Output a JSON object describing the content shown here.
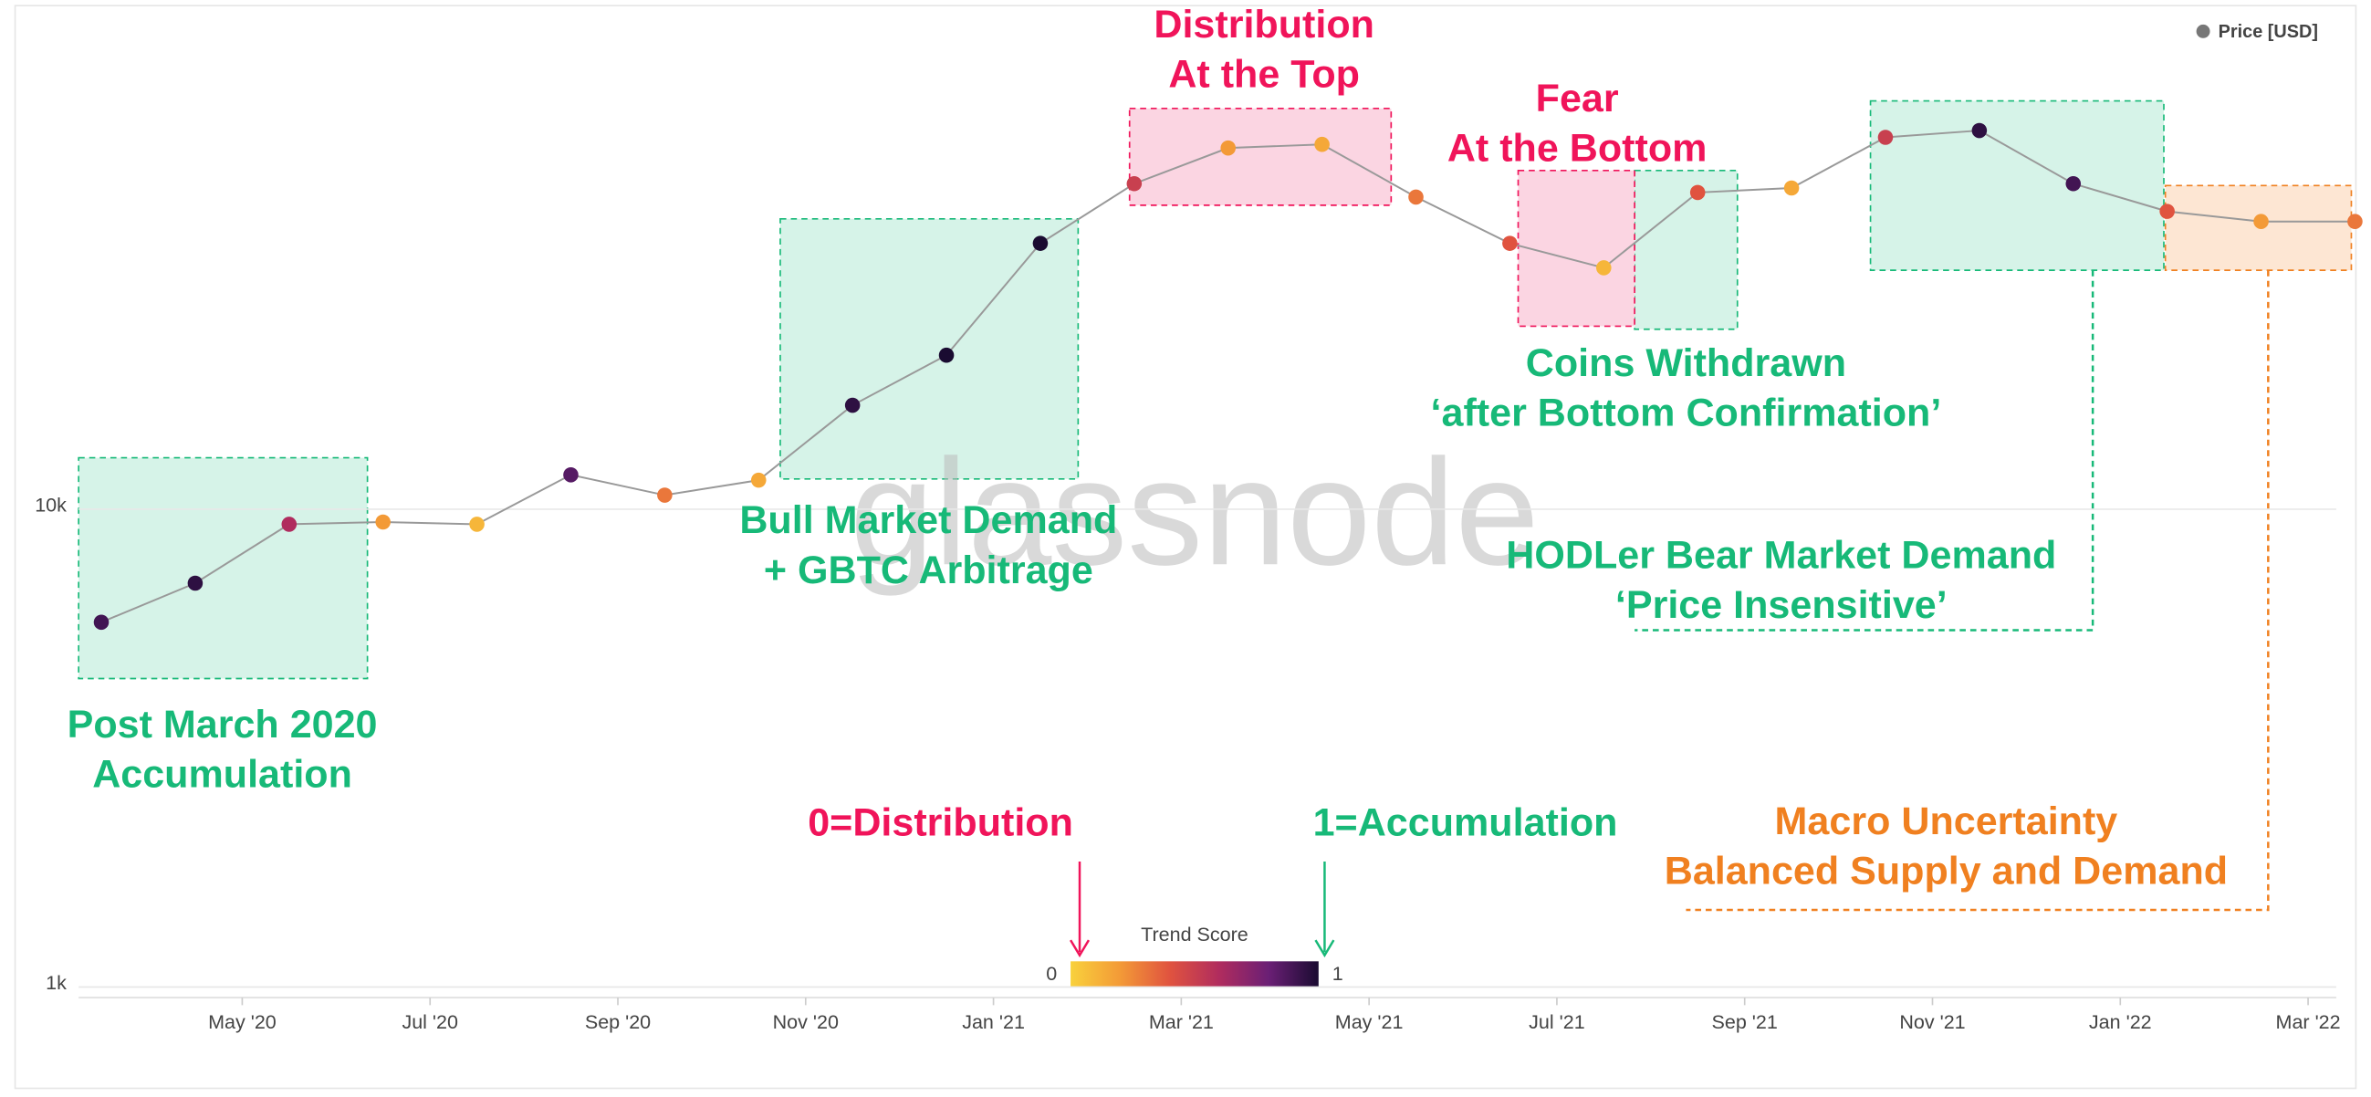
{
  "chart_data": {
    "type": "scatter",
    "log_y": true,
    "grid": true,
    "legend": "top-right",
    "watermark": "glassnode",
    "x": [
      "2020-03",
      "2020-04",
      "2020-05",
      "2020-06",
      "2020-07",
      "2020-08",
      "2020-09",
      "2020-10",
      "2020-11",
      "2020-12",
      "2021-01",
      "2021-02",
      "2021-03",
      "2021-04",
      "2021-05",
      "2021-06",
      "2021-07",
      "2021-08",
      "2021-09",
      "2021-10",
      "2021-11",
      "2021-12",
      "2022-01",
      "2022-02",
      "2022-03"
    ],
    "xticks": [
      {
        "value": "2020-05",
        "label": "May '20"
      },
      {
        "value": "2020-07",
        "label": "Jul '20"
      },
      {
        "value": "2020-09",
        "label": "Sep '20"
      },
      {
        "value": "2020-11",
        "label": "Nov '20"
      },
      {
        "value": "2021-01",
        "label": "Jan '21"
      },
      {
        "value": "2021-03",
        "label": "Mar '21"
      },
      {
        "value": "2021-05",
        "label": "May '21"
      },
      {
        "value": "2021-07",
        "label": "Jul '21"
      },
      {
        "value": "2021-09",
        "label": "Sep '21"
      },
      {
        "value": "2021-11",
        "label": "Nov '21"
      },
      {
        "value": "2022-01",
        "label": "Jan '22"
      },
      {
        "value": "2022-03",
        "label": "Mar '22"
      }
    ],
    "ylim": [
      1000,
      100000
    ],
    "yticks": [
      {
        "value": 1000,
        "label": "1k"
      },
      {
        "value": 10000,
        "label": "10k"
      }
    ],
    "series": [
      {
        "name": "Price [USD]",
        "color": "#777777",
        "values": [
          5800,
          7000,
          9300,
          9400,
          9300,
          11800,
          10700,
          11500,
          16500,
          21000,
          36000,
          48000,
          57000,
          58000,
          45000,
          36000,
          32000,
          46000,
          47000,
          60000,
          62000,
          48000,
          42000,
          40000,
          40000
        ],
        "trend_score": [
          0.9,
          0.95,
          0.6,
          0.2,
          0.1,
          0.85,
          0.3,
          0.15,
          0.95,
          1,
          1,
          0.5,
          0.2,
          0.15,
          0.3,
          0.4,
          0.1,
          0.4,
          0.15,
          0.5,
          0.95,
          0.9,
          0.4,
          0.2,
          0.3
        ]
      }
    ],
    "colorbar": {
      "title": "Trend Score",
      "ticks": [
        0,
        1
      ],
      "colors": [
        "#f9d13c",
        "#f39a37",
        "#e0533f",
        "#b02c5e",
        "#6a1f75",
        "#1a0b31"
      ]
    },
    "annotations": [
      {
        "lines": [
          "Post March 2020",
          "Accumulation"
        ],
        "color": "#17b978"
      },
      {
        "lines": [
          "Bull Market Demand",
          "+ GBTC Arbitrage"
        ],
        "color": "#17b978"
      },
      {
        "lines": [
          "Distribution",
          "At the Top"
        ],
        "color": "#f0145a"
      },
      {
        "lines": [
          "Fear",
          "At the Bottom"
        ],
        "color": "#f0145a"
      },
      {
        "lines": [
          "Coins Withdrawn",
          "‘after Bottom Confirmation’"
        ],
        "color": "#17b978"
      },
      {
        "lines": [
          "HODLer Bear Market Demand",
          "‘Price Insensitive’"
        ],
        "color": "#17b978"
      },
      {
        "lines": [
          "0=Distribution"
        ],
        "color": "#f0145a"
      },
      {
        "lines": [
          "1=Accumulation"
        ],
        "color": "#17b978"
      },
      {
        "lines": [
          "Macro Uncertainty",
          "Balanced Supply and Demand"
        ],
        "color": "#f08020"
      }
    ]
  }
}
